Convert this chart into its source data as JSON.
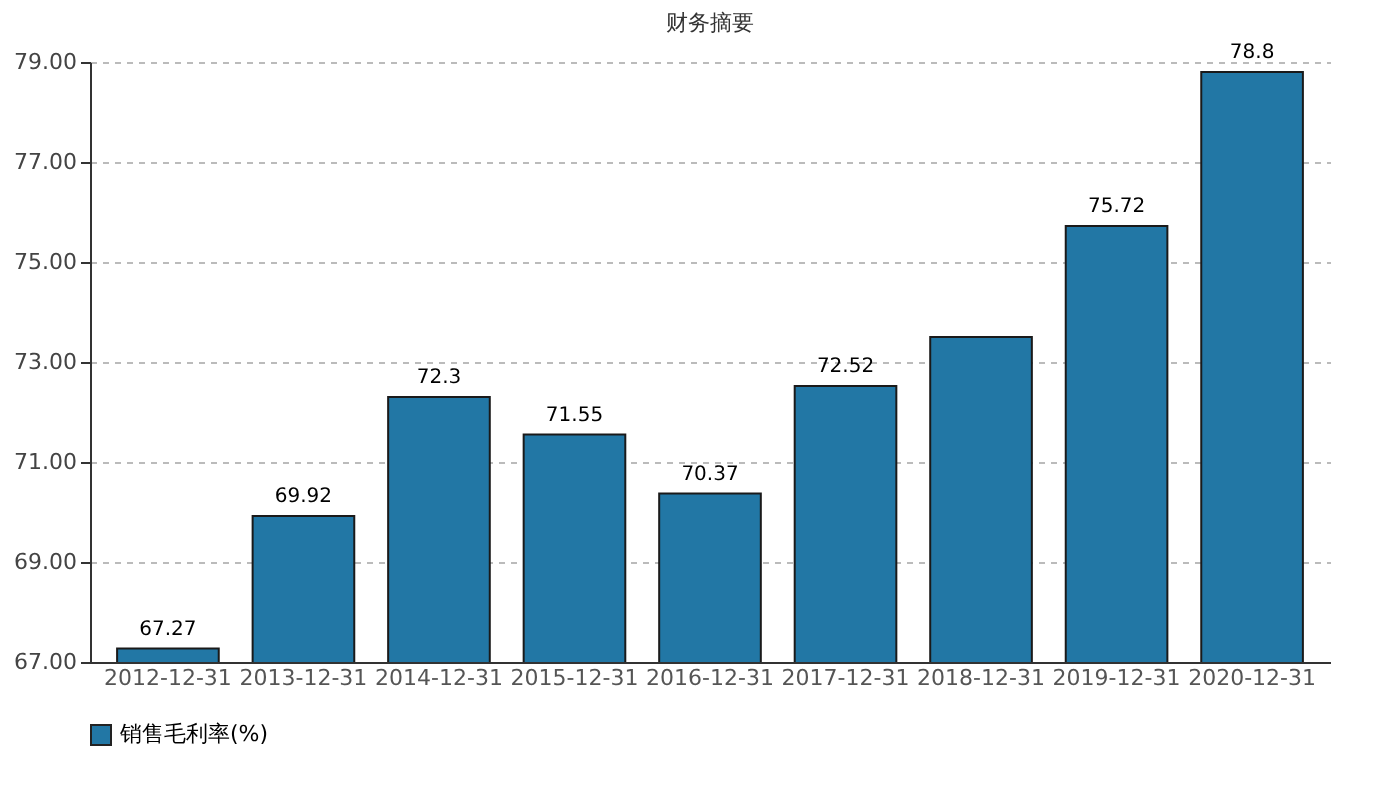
{
  "chart_data": {
    "type": "bar",
    "title": "财务摘要",
    "categories": [
      "2012-12-31",
      "2013-12-31",
      "2014-12-31",
      "2015-12-31",
      "2016-12-31",
      "2017-12-31",
      "2018-12-31",
      "2019-12-31",
      "2020-12-31"
    ],
    "series": [
      {
        "name": "销售毛利率(%)",
        "color": "#2277a5",
        "values": [
          67.27,
          69.92,
          72.3,
          71.55,
          70.37,
          72.52,
          73.5,
          75.72,
          78.8
        ],
        "value_labels": [
          "67.27",
          "69.92",
          "72.3",
          "71.55",
          "70.37",
          "72.52",
          null,
          "75.72",
          "78.8"
        ]
      }
    ],
    "ylim": [
      67,
      79
    ],
    "yticks": [
      {
        "value": 67,
        "label": "67.00"
      },
      {
        "value": 69,
        "label": "69.00"
      },
      {
        "value": 71,
        "label": "71.00"
      },
      {
        "value": 73,
        "label": "73.00"
      },
      {
        "value": 75,
        "label": "75.00"
      },
      {
        "value": 77,
        "label": "77.00"
      },
      {
        "value": 79,
        "label": "79.00"
      }
    ],
    "grid": "y",
    "legend": "bottom"
  }
}
